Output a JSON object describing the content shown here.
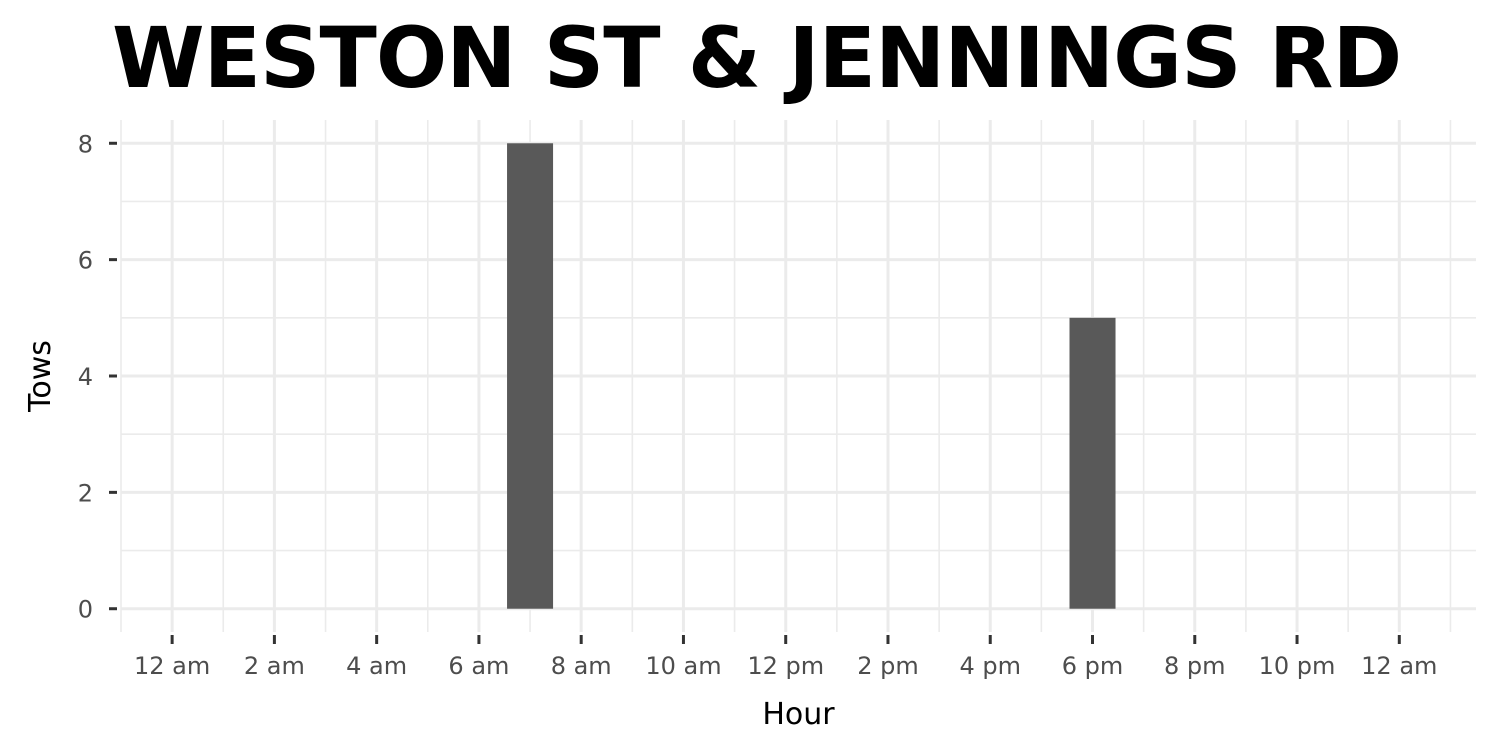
{
  "chart_data": {
    "type": "bar",
    "title": "WESTON ST & JENNINGS RD",
    "xlabel": "Hour",
    "ylabel": "Tows",
    "x_ticks": [
      "12 am",
      "2 am",
      "4 am",
      "6 am",
      "8 am",
      "10 am",
      "12 pm",
      "2 pm",
      "4 pm",
      "6 pm",
      "8 pm",
      "10 pm",
      "12 am"
    ],
    "x_tick_hours": [
      0,
      2,
      4,
      6,
      8,
      10,
      12,
      14,
      16,
      18,
      20,
      22,
      24
    ],
    "y_ticks": [
      0,
      2,
      4,
      6,
      8
    ],
    "xlim": [
      -1,
      25.5
    ],
    "ylim": [
      -0.4,
      8.4
    ],
    "bar_width_hours": 0.9,
    "bars": [
      {
        "hour": 7,
        "label": "7 am",
        "value": 8
      },
      {
        "hour": 18,
        "label": "6 pm",
        "value": 5
      }
    ],
    "grid": true,
    "bar_color": "#595959",
    "grid_color": "#ebebeb"
  }
}
